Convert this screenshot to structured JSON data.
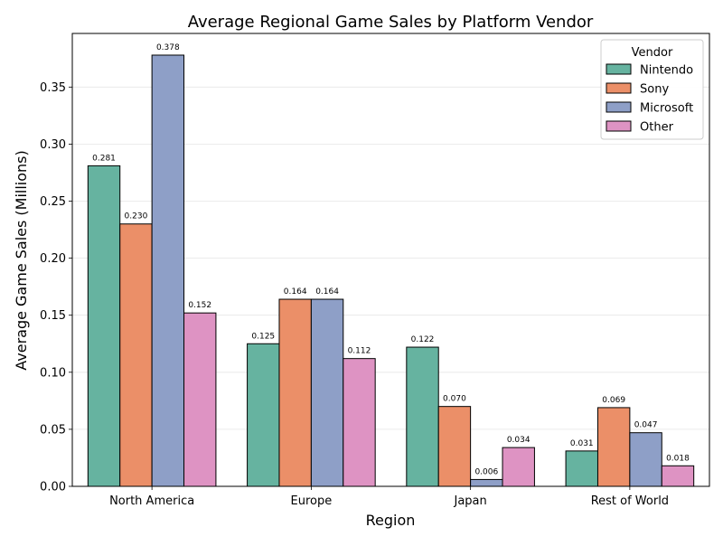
{
  "chart_data": {
    "type": "bar",
    "title": "Average Regional Game Sales by Platform Vendor",
    "xlabel": "Region",
    "ylabel": "Average Game Sales (Millions)",
    "categories": [
      "North America",
      "Europe",
      "Japan",
      "Rest of World"
    ],
    "series": [
      {
        "name": "Nintendo",
        "color": "#66b3a0",
        "values": [
          0.281,
          0.125,
          0.122,
          0.031
        ],
        "labels": [
          "0.281",
          "0.125",
          "0.122",
          "0.031"
        ]
      },
      {
        "name": "Sony",
        "color": "#eb8f68",
        "values": [
          0.23,
          0.164,
          0.07,
          0.069
        ],
        "labels": [
          "0.230",
          "0.164",
          "0.070",
          "0.069"
        ]
      },
      {
        "name": "Microsoft",
        "color": "#8e9fc7",
        "values": [
          0.378,
          0.164,
          0.006,
          0.047
        ],
        "labels": [
          "0.378",
          "0.164",
          "0.006",
          "0.047"
        ]
      },
      {
        "name": "Other",
        "color": "#de93c3",
        "values": [
          0.152,
          0.112,
          0.034,
          0.018
        ],
        "labels": [
          "0.152",
          "0.112",
          "0.034",
          "0.018"
        ]
      }
    ],
    "ylim": [
      0,
      0.397
    ],
    "yticks": [
      "0.00",
      "0.05",
      "0.10",
      "0.15",
      "0.20",
      "0.25",
      "0.30",
      "0.35"
    ],
    "grid": "horizontal",
    "legend": {
      "title": "Vendor",
      "placement": "top-right"
    }
  }
}
